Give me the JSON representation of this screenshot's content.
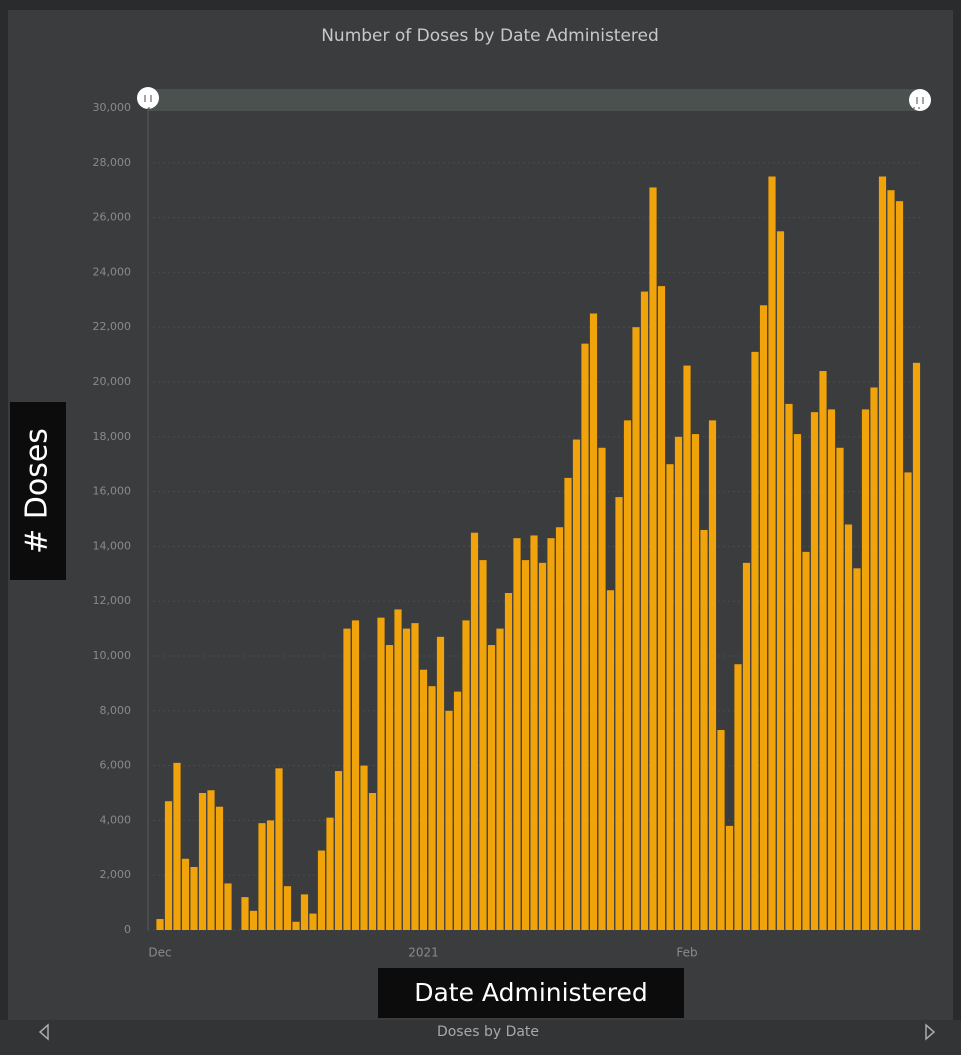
{
  "chart_data": {
    "type": "bar",
    "title": "Number of Doses by Date Administered",
    "y_label": "# Doses",
    "x_label": "Date Administered",
    "footer": "Doses by Date",
    "color": "#f0a30a",
    "grid": true,
    "categories": [
      "Dec",
      null,
      null,
      null,
      null,
      null,
      null,
      null,
      null,
      null,
      null,
      null,
      null,
      null,
      null,
      null,
      null,
      null,
      null,
      null,
      null,
      null,
      null,
      null,
      null,
      null,
      null,
      null,
      null,
      null,
      null,
      "2021",
      null,
      null,
      null,
      null,
      null,
      null,
      null,
      null,
      null,
      null,
      null,
      null,
      null,
      null,
      null,
      null,
      null,
      null,
      null,
      null,
      null,
      null,
      null,
      null,
      null,
      null,
      null,
      null,
      null,
      null,
      "Feb",
      null,
      null,
      null,
      null,
      null,
      null,
      null,
      null,
      null,
      null,
      null,
      null,
      null,
      null,
      null,
      null,
      null,
      null,
      null,
      null,
      null,
      null,
      null,
      null,
      null,
      null,
      null
    ],
    "values": [
      400,
      4700,
      6100,
      2600,
      2300,
      5000,
      5100,
      4500,
      1700,
      0,
      1200,
      700,
      3900,
      4000,
      5900,
      1600,
      300,
      1300,
      600,
      2900,
      4100,
      5800,
      11000,
      11300,
      6000,
      5000,
      11400,
      10400,
      11700,
      11000,
      11200,
      9500,
      8900,
      10700,
      8000,
      8700,
      11300,
      14500,
      13500,
      10400,
      11000,
      12300,
      14300,
      13500,
      14400,
      13400,
      14300,
      14700,
      16500,
      17900,
      21400,
      22500,
      17600,
      12400,
      15800,
      18600,
      22000,
      23300,
      27100,
      23500,
      17000,
      18000,
      20600,
      18100,
      14600,
      18600,
      7300,
      3800,
      9700,
      13400,
      21100,
      22800,
      27500,
      25500,
      19200,
      18100,
      13800,
      18900,
      20400,
      19000,
      17600,
      14800,
      13200,
      19000,
      19800,
      27500,
      27000,
      26600,
      16700,
      20700
    ],
    "ylim": [
      0,
      30000
    ],
    "yticks": [
      0,
      {
        "value": 2000,
        "label": "2,000"
      },
      {
        "value": 4000,
        "label": "4,000"
      },
      {
        "value": 6000,
        "label": "6,000"
      },
      {
        "value": 8000,
        "label": "8,000"
      },
      {
        "value": 10000,
        "label": "10,000"
      },
      {
        "value": 12000,
        "label": "12,000"
      },
      {
        "value": 14000,
        "label": "14,000"
      },
      {
        "value": 16000,
        "label": "16,000"
      },
      {
        "value": 18000,
        "label": "18,000"
      },
      {
        "value": 20000,
        "label": "20,000"
      },
      {
        "value": 22000,
        "label": "22,000"
      },
      {
        "value": 24000,
        "label": "24,000"
      },
      {
        "value": 26000,
        "label": "26,000"
      },
      {
        "value": 28000,
        "label": "28,000"
      },
      {
        "value": 30000,
        "label": "30,000"
      }
    ]
  }
}
